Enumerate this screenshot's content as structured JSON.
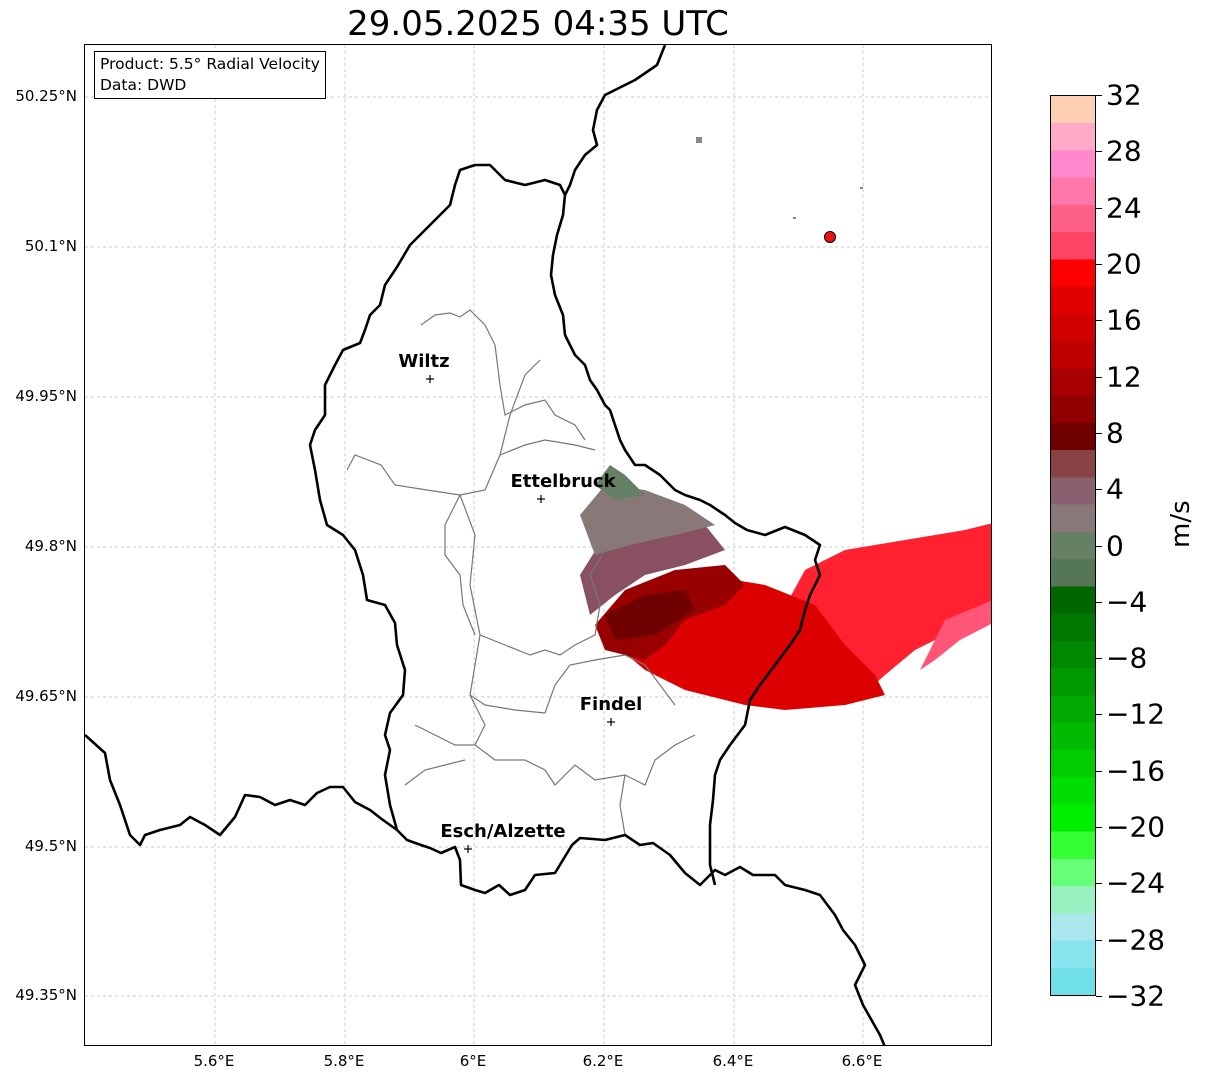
{
  "title": "29.05.2025 04:35 UTC",
  "info": {
    "product": "Product: 5.5° Radial Velocity",
    "data": "Data: DWD"
  },
  "axes": {
    "lat_ticks": [
      "50.25°N",
      "50.1°N",
      "49.95°N",
      "49.8°N",
      "49.65°N",
      "49.5°N",
      "49.35°N"
    ],
    "lon_ticks": [
      "5.6°E",
      "5.8°E",
      "6°E",
      "6.2°E",
      "6.4°E",
      "6.6°E"
    ]
  },
  "cities": [
    {
      "name": "Wiltz",
      "lon": 5.93,
      "lat": 49.967
    },
    {
      "name": "Ettelbruck",
      "lon": 6.1,
      "lat": 49.848
    },
    {
      "name": "Findel",
      "lon": 6.21,
      "lat": 49.625
    },
    {
      "name": "Esch/Alzette",
      "lon": 5.99,
      "lat": 49.497
    }
  ],
  "radar_site": {
    "lon": 6.548,
    "lat": 50.11
  },
  "colorbar": {
    "unit": "m/s",
    "min": -32,
    "max": 32,
    "tick_labels": [
      "32",
      "28",
      "24",
      "20",
      "16",
      "12",
      "8",
      "4",
      "0",
      "−4",
      "−8",
      "−12",
      "−16",
      "−20",
      "−24",
      "−28",
      "−32"
    ],
    "colors": [
      "#ffcfb3",
      "#ffaac8",
      "#ff88cc",
      "#ff77aa",
      "#ff6088",
      "#ff4466",
      "#ff0000",
      "#e00000",
      "#d00000",
      "#c00000",
      "#a80000",
      "#900000",
      "#700000",
      "#884444",
      "#886070",
      "#887878",
      "#668066",
      "#557755",
      "#006600",
      "#007700",
      "#008800",
      "#009900",
      "#00aa00",
      "#00bb00",
      "#00cc00",
      "#00dd00",
      "#00ee00",
      "#33ff33",
      "#66ff77",
      "#99f0c0",
      "#aae8ee",
      "#88e4ee",
      "#70e0e8"
    ]
  }
}
